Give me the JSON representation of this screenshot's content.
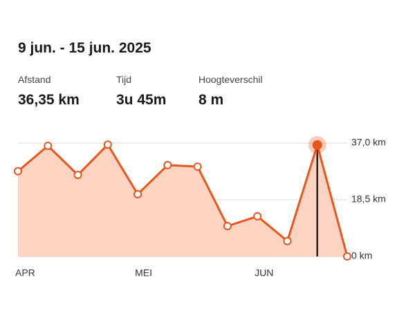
{
  "header": {
    "title": "9 jun. - 15 jun. 2025"
  },
  "stats": [
    {
      "label": "Afstand",
      "value": "36,35 km"
    },
    {
      "label": "Tijd",
      "value": "3u 45m"
    },
    {
      "label": "Hoogteverschil",
      "value": "8 m"
    }
  ],
  "chart_data": {
    "type": "area",
    "categories": [
      "APR",
      null,
      null,
      null,
      "MEI",
      null,
      null,
      null,
      "JUN",
      null,
      null,
      null
    ],
    "series": [
      {
        "color": "#e8561c",
        "fill": "#fdd3c2",
        "values": [
          27.8,
          36.1,
          26.6,
          36.5,
          20.3,
          29.8,
          29.3,
          9.9,
          13.1,
          5.0,
          36.35,
          0
        ]
      }
    ],
    "ylim": [
      0,
      37
    ],
    "yticks": [
      {
        "value": 0,
        "label": "0 km"
      },
      {
        "value": 18.5,
        "label": "18,5 km"
      },
      {
        "value": 37,
        "label": "37,0 km"
      }
    ],
    "grid": true,
    "selected_index": 10
  }
}
